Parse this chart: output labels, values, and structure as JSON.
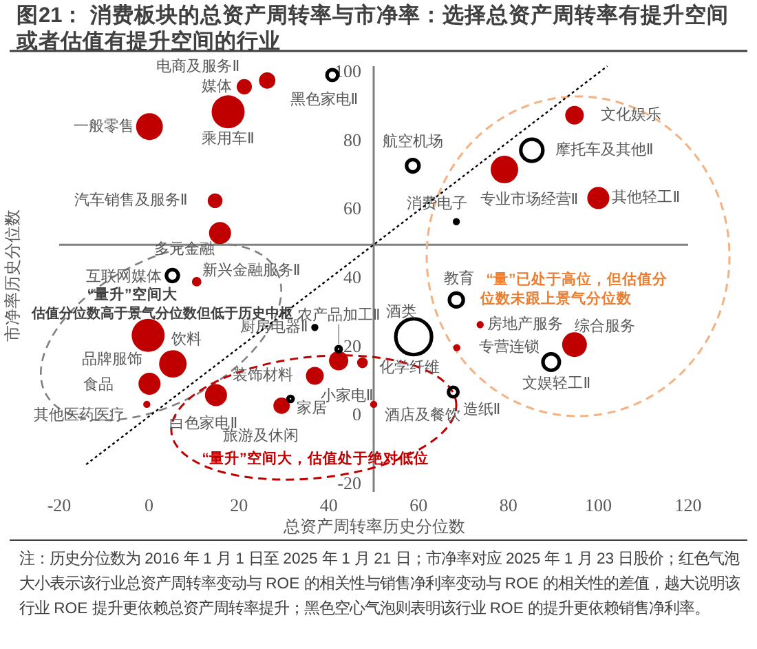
{
  "chart_data": {
    "type": "bubble",
    "title": "图21： 消费板块的总资产周转率与市净率：选择总资产周转率有提升空间或者估值有提升空间的行业",
    "xlabel": "总资产周转率历史分位数",
    "ylabel": "市净率历史分位数",
    "xlim": [
      -20,
      120
    ],
    "ylim": [
      -22,
      102
    ],
    "xticks": [
      -20,
      0,
      20,
      40,
      60,
      80,
      100,
      120
    ],
    "yticks": [
      -20,
      0,
      20,
      40,
      60,
      80,
      100
    ],
    "grid": false,
    "ref_lines": [
      {
        "axis": "y",
        "value": 50,
        "color": "#808080"
      }
    ],
    "annotations": [
      "“量升”空间大",
      "估值分位数高于景气分位数但低于历史中枢",
      "“量”已处于高位，但估值分",
      "位数未跟上景气分位数",
      "“量升”空间大，估值处于绝对低位",
      "注：历史分位数为 2016 年 1 月 1 日至 2025 年 1 月 21 日；市净率对应 2025 年 1 月 23 日股价；红色气泡大小表示该行业总资产周转率变动与 ROE 的相关性与销售净利率变动与 ROE 的相关性的差值，越大说明该行业 ROE 提升更依赖总资产周转率提升；黑色空心气泡则表明该行业 ROE 的提升更依赖销售净利率。"
    ],
    "series": [
      {
        "type": "bubble",
        "color": "#c00000",
        "x": [
          26.3,
          21.2,
          17.6,
          0.1,
          14.7,
          15.8,
          10.6,
          -0.2,
          5.3,
          0.1,
          -0.5,
          14.9,
          29.5,
          36.9,
          42.2,
          47.5,
          50,
          94.7,
          79.1,
          100,
          73.7,
          68.5,
          94.7
        ],
        "values": [
          97.8,
          96,
          88.7,
          84.4,
          62.8,
          53.4,
          39.2,
          23.6,
          15.3,
          9.5,
          3.5,
          6.2,
          3.1,
          11.8,
          16.2,
          15.6,
          3.5,
          87.7,
          71.9,
          63.6,
          26.7,
          20,
          20.9
        ],
        "sizes": [
          0.21,
          0.18,
          0.85,
          0.56,
          0.17,
          0.38,
          0.07,
          0.85,
          0.59,
          0.38,
          0.04,
          0.38,
          0.21,
          0.25,
          0.29,
          0.09,
          0.04,
          0.27,
          0.59,
          0.38,
          0.04,
          0.04,
          0.48
        ],
        "value_labels": [
          "电商及服务Ⅱ",
          "媒体",
          "乘用车Ⅱ",
          "一般零售",
          "汽车销售及服务Ⅱ",
          "多元金融",
          "新兴金融服务Ⅱ",
          "饮料",
          "品牌服饰",
          "食品",
          "其他医药医疗",
          "白色家电Ⅱ",
          "旅游及休闲",
          "家居",
          "小家电Ⅱ",
          "化学纤维",
          "酒店及餐饮",
          "文化娱乐",
          "专业市场经营Ⅱ",
          "其他轻工Ⅱ",
          "房地产服务",
          "专营连锁",
          "综合服务"
        ]
      },
      {
        "type": "bubble",
        "color": "#000000",
        "x": [
          40.8,
          5.2,
          31.5,
          36.9,
          42.2,
          85.2,
          58.7,
          68.4,
          68.4,
          58.9,
          89.5,
          67.7
        ],
        "values": [
          99.4,
          41,
          5.1,
          25.9,
          19.6,
          77.5,
          73,
          56.7,
          33.9,
          23.2,
          15.8,
          7.1
        ],
        "sizes": [
          0.09,
          0.11,
          0.02,
          0.01,
          0.02,
          0.38,
          0.12,
          0.01,
          0.15,
          1,
          0.21,
          0.07
        ],
        "value_labels": [
          "黑色家电Ⅱ",
          "互联网媒体",
          "装饰材料",
          "厨房电器Ⅱ",
          "农产品加工Ⅱ",
          "摩托车及其他Ⅱ",
          "航空机场",
          "消费电子",
          "教育",
          "酒类",
          "文娱轻工Ⅱ",
          "造纸Ⅱ"
        ]
      },
      {
        "color": "#000000",
        "line_style": "dotted",
        "x": [
          -14,
          102
        ],
        "values": [
          -14,
          102
        ],
        "type": "line"
      }
    ]
  }
}
